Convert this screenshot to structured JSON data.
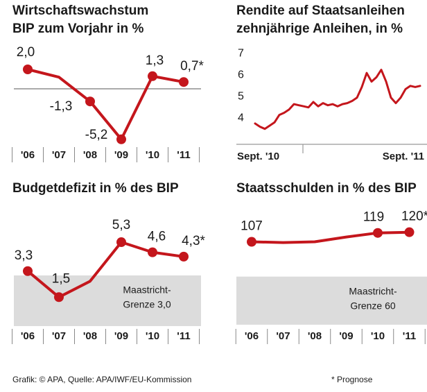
{
  "chart_data": [
    {
      "type": "line",
      "title": "Wirtschaftswachstum",
      "subtitle": "BIP zum Vorjahr in %",
      "categories": [
        "'06",
        "'07",
        "'08",
        "'09",
        "'10",
        "'11"
      ],
      "values": [
        2.0,
        1.2,
        -1.3,
        -5.2,
        1.3,
        0.7
      ],
      "value_labels": [
        "2,0",
        null,
        "-1,3",
        "-5,2",
        "1,3",
        "0,7*"
      ],
      "color": "#c4161c",
      "ylim": [
        -6,
        3
      ],
      "zero_line": true
    },
    {
      "type": "line",
      "title": "Rendite auf Staatsanleihen",
      "subtitle": "zehnjährige Anleihen, in %",
      "categories": [
        "Sept. '10",
        null,
        null,
        null,
        null,
        null,
        null,
        null,
        null,
        null,
        null,
        null,
        null,
        null,
        null,
        null,
        null,
        null,
        null,
        null,
        null,
        null,
        null,
        null,
        null,
        null,
        null,
        null,
        null,
        null,
        null,
        null,
        null,
        null,
        "Sept. '11"
      ],
      "values": [
        3.75,
        3.6,
        3.5,
        3.65,
        3.8,
        4.15,
        4.25,
        4.4,
        4.65,
        4.6,
        4.55,
        4.5,
        4.75,
        4.55,
        4.7,
        4.6,
        4.65,
        4.55,
        4.65,
        4.7,
        4.8,
        4.95,
        5.45,
        6.1,
        5.7,
        5.9,
        6.25,
        5.7,
        4.95,
        4.7,
        4.95,
        5.35,
        5.5,
        5.45,
        5.5
      ],
      "color": "#c4161c",
      "ylim": [
        3.2,
        7.4
      ],
      "yticks": [
        4,
        5,
        6,
        7
      ]
    },
    {
      "type": "line",
      "title": "Budgetdefizit in % des BIP",
      "categories": [
        "'06",
        "'07",
        "'08",
        "'09",
        "'10",
        "'11"
      ],
      "values": [
        3.3,
        1.5,
        2.6,
        5.3,
        4.6,
        4.3
      ],
      "value_labels": [
        "3,3",
        "1,5",
        null,
        "5,3",
        "4,6",
        "4,3*"
      ],
      "color": "#c4161c",
      "ylim": [
        -0.5,
        6.5
      ],
      "threshold": {
        "value": 3.0,
        "label": [
          "Maastricht-",
          "Grenze 3,0"
        ]
      }
    },
    {
      "type": "line",
      "title": "Staatsschulden in % des BIP",
      "categories": [
        "'06",
        "'07",
        "'08",
        "'09",
        "'10",
        "'11"
      ],
      "values": [
        107,
        106,
        107,
        113.5,
        119,
        120
      ],
      "value_labels": [
        "107",
        null,
        null,
        null,
        "119",
        "120*"
      ],
      "color": "#c4161c",
      "ylim": [
        -5,
        130
      ],
      "threshold": {
        "value": 60,
        "label": [
          "Maastricht-",
          "Grenze 60"
        ]
      }
    }
  ],
  "footer": {
    "source": "Grafik: © APA, Quelle: APA/IWF/EU-Kommission",
    "note": "* Prognose"
  }
}
